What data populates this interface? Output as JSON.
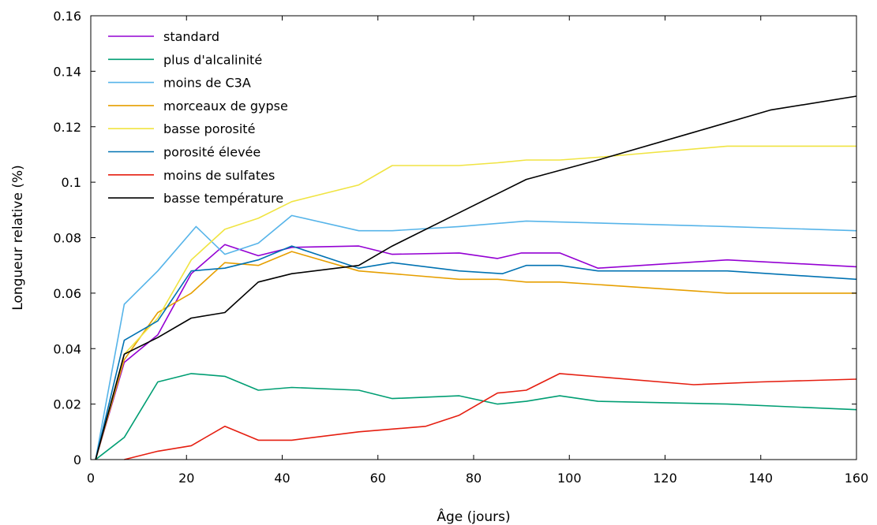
{
  "chart_data": {
    "type": "line",
    "title": "",
    "xlabel": "Âge (jours)",
    "ylabel": "Longueur relative (%)",
    "xlim": [
      0,
      160
    ],
    "ylim": [
      0,
      0.16
    ],
    "x_ticks": [
      0,
      20,
      40,
      60,
      80,
      100,
      120,
      140,
      160
    ],
    "x_tick_labels": [
      "0",
      "20",
      "40",
      "60",
      "80",
      "100",
      "120",
      "140",
      "160"
    ],
    "y_ticks": [
      0,
      0.02,
      0.04,
      0.06,
      0.08,
      0.1,
      0.12,
      0.14,
      0.16
    ],
    "y_tick_labels": [
      "0",
      "0.02",
      "0.04",
      "0.06",
      "0.08",
      "0.1",
      "0.12",
      "0.14",
      "0.16"
    ],
    "grid": false,
    "legend_position": "top-left",
    "series": [
      {
        "name": "standard",
        "color": "#9400d3",
        "x": [
          1,
          7,
          14,
          21,
          28,
          35,
          42,
          56,
          63,
          77,
          85,
          90,
          98,
          106,
          133,
          160
        ],
        "y": [
          0,
          0.035,
          0.045,
          0.067,
          0.0775,
          0.0735,
          0.0765,
          0.077,
          0.074,
          0.0745,
          0.0725,
          0.0745,
          0.0745,
          0.069,
          0.072,
          0.0695
        ]
      },
      {
        "name": "plus d'alcalinité",
        "color": "#009e73",
        "x": [
          1,
          7,
          14,
          21,
          28,
          35,
          42,
          56,
          63,
          77,
          85,
          91,
          98,
          106,
          133,
          160
        ],
        "y": [
          0,
          0.008,
          0.028,
          0.031,
          0.03,
          0.025,
          0.026,
          0.025,
          0.022,
          0.023,
          0.02,
          0.021,
          0.023,
          0.021,
          0.02,
          0.018
        ]
      },
      {
        "name": "moins de C3A",
        "color": "#56b4e9",
        "x": [
          1,
          7,
          14,
          22,
          28,
          35,
          42,
          56,
          63,
          77,
          91,
          133,
          160
        ],
        "y": [
          0,
          0.056,
          0.068,
          0.084,
          0.074,
          0.078,
          0.088,
          0.0825,
          0.0825,
          0.084,
          0.086,
          0.084,
          0.0825
        ]
      },
      {
        "name": "morceaux de gypse",
        "color": "#e69f00",
        "x": [
          1,
          7,
          14,
          21,
          28,
          35,
          42,
          56,
          63,
          77,
          85,
          91,
          98,
          133,
          160
        ],
        "y": [
          0,
          0.036,
          0.053,
          0.06,
          0.071,
          0.07,
          0.075,
          0.068,
          0.067,
          0.065,
          0.065,
          0.064,
          0.064,
          0.06,
          0.06
        ]
      },
      {
        "name": "basse porosité",
        "color": "#f0e442",
        "x": [
          1,
          7,
          14,
          21,
          28,
          35,
          42,
          56,
          63,
          77,
          85,
          91,
          98,
          106,
          133,
          160
        ],
        "y": [
          0,
          0.038,
          0.051,
          0.072,
          0.083,
          0.087,
          0.093,
          0.099,
          0.106,
          0.106,
          0.107,
          0.108,
          0.108,
          0.109,
          0.113,
          0.113
        ]
      },
      {
        "name": "porosité élevée",
        "color": "#0072b2",
        "x": [
          1,
          7,
          14,
          21,
          28,
          35,
          42,
          56,
          63,
          77,
          86,
          91,
          98,
          106,
          133,
          160
        ],
        "y": [
          0,
          0.043,
          0.05,
          0.068,
          0.069,
          0.072,
          0.077,
          0.069,
          0.071,
          0.068,
          0.067,
          0.07,
          0.07,
          0.068,
          0.068,
          0.065
        ]
      },
      {
        "name": "moins de sulfates",
        "color": "#e51e10",
        "x": [
          7,
          14,
          21,
          28,
          35,
          42,
          56,
          63,
          70,
          77,
          85,
          91,
          98,
          126,
          140,
          160
        ],
        "y": [
          0,
          0.003,
          0.005,
          0.012,
          0.007,
          0.007,
          0.01,
          0.011,
          0.012,
          0.016,
          0.024,
          0.025,
          0.031,
          0.027,
          0.028,
          0.029
        ]
      },
      {
        "name": "basse température",
        "color": "#000000",
        "x": [
          1,
          7,
          14,
          21,
          28,
          35,
          42,
          56,
          63,
          77,
          91,
          106,
          126,
          142,
          160
        ],
        "y": [
          0,
          0.038,
          0.044,
          0.051,
          0.053,
          0.064,
          0.067,
          0.07,
          0.077,
          0.089,
          0.101,
          0.108,
          0.118,
          0.126,
          0.131
        ]
      }
    ]
  }
}
